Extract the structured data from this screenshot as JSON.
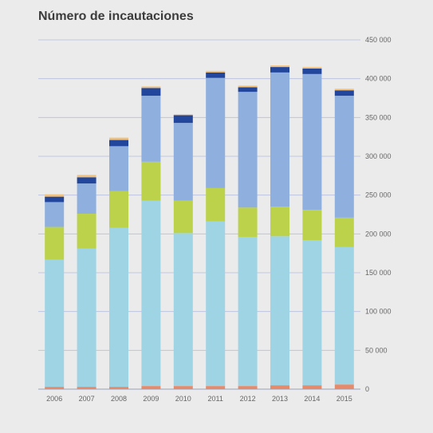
{
  "chart_data": {
    "type": "bar",
    "stacked": true,
    "title": "Número de incautaciones",
    "xlabel": "",
    "ylabel": "",
    "ylim": [
      0,
      450000
    ],
    "yticks": [
      0,
      50000,
      100000,
      150000,
      200000,
      250000,
      300000,
      350000,
      400000,
      450000
    ],
    "ytick_labels": [
      "0",
      "50 000",
      "100 000",
      "150 000",
      "200 000",
      "250 000",
      "300 000",
      "350 000",
      "400 000",
      "450 000"
    ],
    "y_axis_position": "right",
    "grid": true,
    "legend": "none",
    "categories": [
      "2006",
      "2007",
      "2008",
      "2009",
      "2010",
      "2011",
      "2012",
      "2013",
      "2014",
      "2015"
    ],
    "series": [
      {
        "color": "#e58b6c",
        "values": [
          3000,
          3000,
          3000,
          4000,
          4000,
          4000,
          4000,
          5000,
          5000,
          6000
        ]
      },
      {
        "color": "#9fd4e4",
        "values": [
          164000,
          178000,
          205000,
          239000,
          197000,
          212000,
          192000,
          192000,
          187000,
          177000
        ]
      },
      {
        "color": "#bcd24a",
        "values": [
          42000,
          45000,
          47000,
          50000,
          42000,
          43000,
          38000,
          38000,
          39000,
          38000
        ]
      },
      {
        "color": "#8fafde",
        "values": [
          32000,
          39000,
          58000,
          85000,
          100000,
          142000,
          149000,
          173000,
          175000,
          157000
        ]
      },
      {
        "color": "#21469b",
        "values": [
          7000,
          8000,
          8000,
          10000,
          10000,
          7000,
          6000,
          7000,
          7000,
          7000
        ]
      },
      {
        "color": "#f3c07a",
        "values": [
          3000,
          3000,
          3000,
          2000,
          1000,
          2000,
          2000,
          2000,
          2000,
          2000
        ]
      }
    ]
  }
}
